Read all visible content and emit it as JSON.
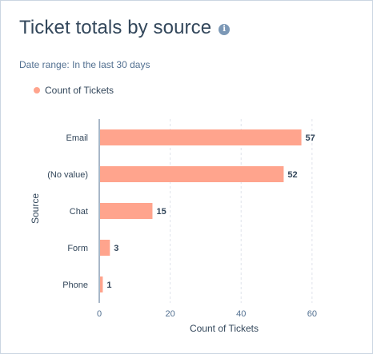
{
  "card": {
    "title": "Ticket totals by source",
    "info_icon": "info-icon",
    "date_range_label": "Date range:",
    "date_range_value": "In the last 30 days"
  },
  "colors": {
    "bar": "#ffa48d",
    "axis": "#516f90",
    "grid": "#dfe3eb"
  },
  "chart_data": {
    "type": "bar",
    "orientation": "horizontal",
    "categories": [
      "Email",
      "(No value)",
      "Chat",
      "Form",
      "Phone"
    ],
    "series": [
      {
        "name": "Count of Tickets",
        "values": [
          57,
          52,
          15,
          3,
          1
        ]
      }
    ],
    "xlabel": "Count of Tickets",
    "ylabel": "Source",
    "xlim": [
      0,
      65
    ],
    "xticks": [
      0,
      20,
      40,
      60
    ],
    "grid": "vertical-dashed",
    "legend": "top-left",
    "data_labels": true
  }
}
